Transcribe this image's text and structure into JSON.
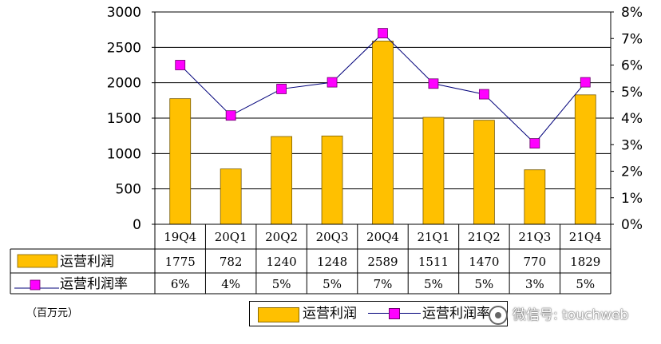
{
  "chart_data": {
    "type": "bar+line",
    "categories": [
      "19Q4",
      "20Q1",
      "20Q2",
      "20Q3",
      "20Q4",
      "21Q1",
      "21Q2",
      "21Q3",
      "21Q4"
    ],
    "series": [
      {
        "name": "运营利润",
        "kind": "bar",
        "axis": "left",
        "color": "#FFC000",
        "values": [
          1775,
          782,
          1240,
          1248,
          2589,
          1511,
          1470,
          770,
          1829
        ],
        "labels": [
          "1775",
          "782",
          "1240",
          "1248",
          "2589",
          "1511",
          "1470",
          "770",
          "1829"
        ]
      },
      {
        "name": "运营利润率",
        "kind": "line",
        "axis": "right",
        "color": "#FF00FF",
        "line_color": "#00007A",
        "values": [
          6.0,
          4.1,
          5.1,
          5.35,
          7.2,
          5.3,
          4.9,
          3.05,
          5.35
        ],
        "labels": [
          "6%",
          "4%",
          "5%",
          "5%",
          "7%",
          "5%",
          "5%",
          "3%",
          "5%"
        ]
      }
    ],
    "y_left": {
      "min": 0,
      "max": 3000,
      "ticks": [
        "0",
        "500",
        "1000",
        "1500",
        "2000",
        "2500",
        "3000"
      ]
    },
    "y_right": {
      "min": 0,
      "max": 8,
      "ticks": [
        "0%",
        "1%",
        "2%",
        "3%",
        "4%",
        "5%",
        "6%",
        "7%",
        "8%"
      ]
    },
    "grid": true,
    "legend": {
      "placement": "bottom-center",
      "items": [
        "运营利润",
        "运营利润率"
      ]
    },
    "unit_note": "（百万元）"
  },
  "watermark": {
    "text": "微信号: touchweb"
  }
}
